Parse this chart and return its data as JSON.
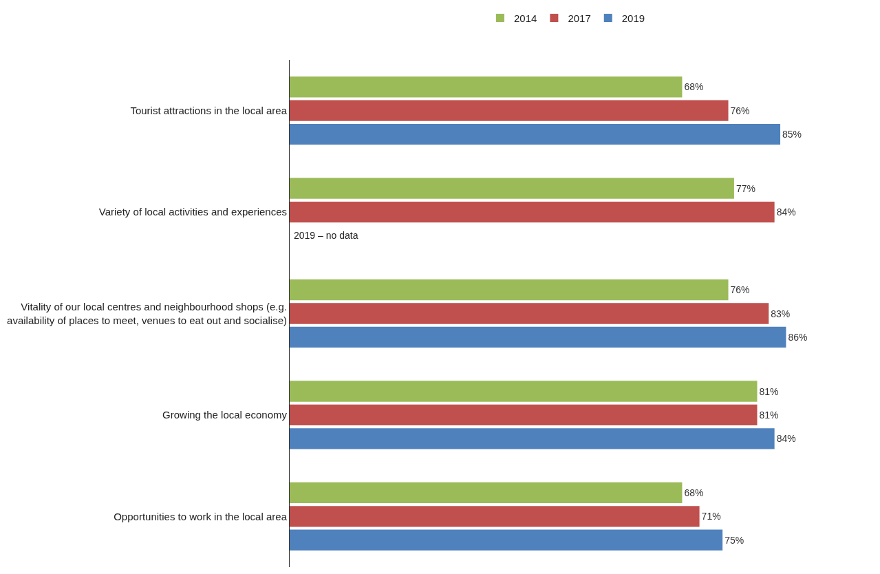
{
  "chart_data": {
    "type": "bar",
    "orientation": "horizontal",
    "categories": [
      "Tourist attractions in the local area",
      "Variety of local activities and experiences",
      "Vitality of our local centres and neighbourhood shops (e.g. availability of places to meet, venues to eat out and socialise)",
      "Growing the local economy",
      "Opportunities to work in the local area"
    ],
    "series": [
      {
        "name": "2014",
        "color": "#9bbb59",
        "values": [
          68,
          77,
          76,
          81,
          68
        ],
        "value_labels": [
          "68%",
          "77%",
          "76%",
          "81%",
          "68%"
        ]
      },
      {
        "name": "2017",
        "color": "#c0504d",
        "values": [
          76,
          84,
          83,
          81,
          71
        ],
        "value_labels": [
          "76%",
          "84%",
          "83%",
          "81%",
          "71%"
        ]
      },
      {
        "name": "2019",
        "color": "#4f81bd",
        "values": [
          85,
          null,
          86,
          84,
          75
        ],
        "value_labels": [
          "85%",
          null,
          "86%",
          "84%",
          "75%"
        ]
      }
    ],
    "annotations": [
      {
        "text": "2019 – no data",
        "x": 0,
        "y": "Variety of local activities and experiences"
      }
    ],
    "legend": "top"
  }
}
